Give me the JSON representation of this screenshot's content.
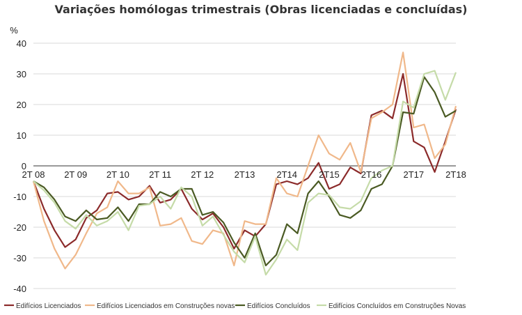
{
  "chart_data": {
    "type": "line",
    "title": "Variações homólogas trimestrais (Obras licenciadas e concluídas)",
    "ylabel": "%",
    "xlabel": "",
    "ylim": [
      -40,
      40
    ],
    "yticks": [
      40,
      30,
      20,
      10,
      0,
      -10,
      -20,
      -30,
      -40
    ],
    "x_tick_labels": [
      {
        "index": 0,
        "label": "2T 08"
      },
      {
        "index": 4,
        "label": "2T 09"
      },
      {
        "index": 8,
        "label": "2T 10"
      },
      {
        "index": 12,
        "label": "2T 11"
      },
      {
        "index": 16,
        "label": "2T 12"
      },
      {
        "index": 20,
        "label": "2T13"
      },
      {
        "index": 24,
        "label": "2T14"
      },
      {
        "index": 28,
        "label": "2T15"
      },
      {
        "index": 32,
        "label": "2T16"
      },
      {
        "index": 36,
        "label": "2T17"
      },
      {
        "index": 40,
        "label": "2T18"
      }
    ],
    "series": [
      {
        "name": "Edifícios Licenciados",
        "color": "#8b2a2a",
        "values": [
          -5,
          -14,
          -21,
          -26.5,
          -24,
          -17,
          -14.5,
          -9,
          -8.5,
          -11,
          -10,
          -6.5,
          -12,
          -11,
          -7.5,
          -14,
          -17.5,
          -15.5,
          -20,
          -27,
          -21,
          -23,
          -19,
          -6,
          -5,
          -6,
          -4,
          1,
          -7.5,
          -6,
          -0.5,
          -2.5,
          16.5,
          18,
          15.5,
          30,
          8,
          6,
          -2,
          8,
          18.5
        ]
      },
      {
        "name": "Edifícios Licenciados em Construções novas",
        "color": "#f0b88a",
        "values": [
          -5,
          -18,
          -27,
          -33.5,
          -29,
          -22,
          -15.5,
          -13.5,
          -5,
          -9,
          -9,
          -7,
          -19.5,
          -19,
          -17,
          -24.5,
          -25.5,
          -21,
          -22,
          -32.5,
          -18,
          -19,
          -19,
          -4,
          -9,
          -10,
          0,
          10,
          4,
          2,
          7.5,
          -2,
          15.5,
          17.5,
          20,
          37,
          12.5,
          13.5,
          2.5,
          7,
          19.5
        ]
      },
      {
        "name": "Edifícios Concluídos",
        "color": "#4a5a23",
        "values": [
          -5,
          -7,
          -11,
          -16.5,
          -18,
          -14.5,
          -17.5,
          -17,
          -13.5,
          -18,
          -12.5,
          -12.5,
          -8.5,
          -10,
          -7.5,
          -7.5,
          -16,
          -15,
          -18.5,
          -25,
          -30,
          -22,
          -32.5,
          -29,
          -19,
          -22,
          -9,
          -5,
          -10,
          -16,
          -17,
          -14.5,
          -7.5,
          -6,
          0,
          17.5,
          17,
          29,
          24,
          16,
          18
        ]
      },
      {
        "name": "Edifícios Concluídos em Construções Novas",
        "color": "#c5dba8",
        "values": [
          -5,
          -8,
          -12,
          -18,
          -20.5,
          -16,
          -19.5,
          -18,
          -15,
          -21,
          -13,
          -12.5,
          -10,
          -14,
          -7,
          -10,
          -19.5,
          -16.5,
          -22.5,
          -28,
          -31.5,
          -23,
          -35.5,
          -30.5,
          -24,
          -27.5,
          -12,
          -9,
          -9.5,
          -13.5,
          -14,
          -11.5,
          -4,
          -1.5,
          0,
          21,
          19,
          30,
          31,
          21.5,
          30.5
        ]
      }
    ],
    "legend_position": "bottom"
  }
}
